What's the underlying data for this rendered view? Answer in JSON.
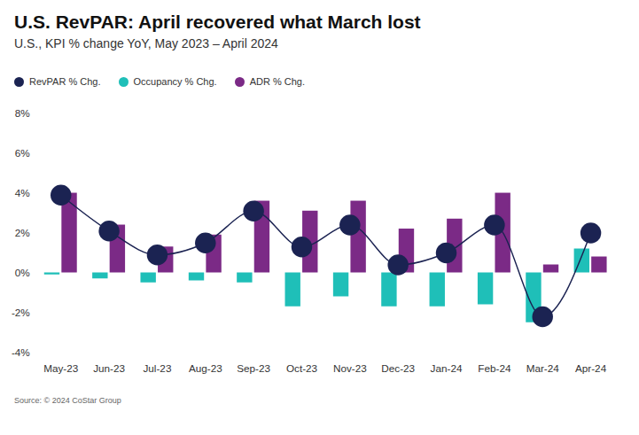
{
  "chart_data": {
    "type": "bar",
    "title": "U.S. RevPAR: April recovered what March lost",
    "subtitle": "U.S., KPI % change YoY, May 2023 – April 2024",
    "source": "Source: © 2024 CoStar Group",
    "categories": [
      "May-23",
      "Jun-23",
      "Jul-23",
      "Aug-23",
      "Sep-23",
      "Oct-23",
      "Nov-23",
      "Dec-23",
      "Jan-24",
      "Feb-24",
      "Mar-24",
      "Apr-24"
    ],
    "series": [
      {
        "name": "RevPAR % Chg.",
        "color": "#1b2352",
        "type": "line",
        "marker": "circle",
        "values": [
          3.9,
          2.1,
          0.9,
          1.5,
          3.1,
          1.3,
          2.4,
          0.4,
          1.0,
          2.4,
          -2.2,
          2.0
        ]
      },
      {
        "name": "Occupancy % Chg.",
        "color": "#1fbfb8",
        "type": "bar",
        "values": [
          -0.1,
          -0.3,
          -0.5,
          -0.4,
          -0.5,
          -1.7,
          -1.2,
          -1.7,
          -1.7,
          -1.6,
          -2.5,
          1.2
        ]
      },
      {
        "name": "ADR % Chg.",
        "color": "#7b2a86",
        "type": "bar",
        "values": [
          4.0,
          2.4,
          1.3,
          1.9,
          3.6,
          3.1,
          3.6,
          2.2,
          2.7,
          4.0,
          0.4,
          0.8
        ]
      }
    ],
    "ylim": [
      -4,
      8
    ],
    "yticks": [
      {
        "value": -4,
        "label": "-4%"
      },
      {
        "value": -2,
        "label": "-2%"
      },
      {
        "value": 0,
        "label": "0%"
      },
      {
        "value": 2,
        "label": "2%"
      },
      {
        "value": 4,
        "label": "4%"
      },
      {
        "value": 6,
        "label": "6%"
      },
      {
        "value": 8,
        "label": "8%"
      }
    ],
    "grid": false,
    "legend": "top-left"
  }
}
